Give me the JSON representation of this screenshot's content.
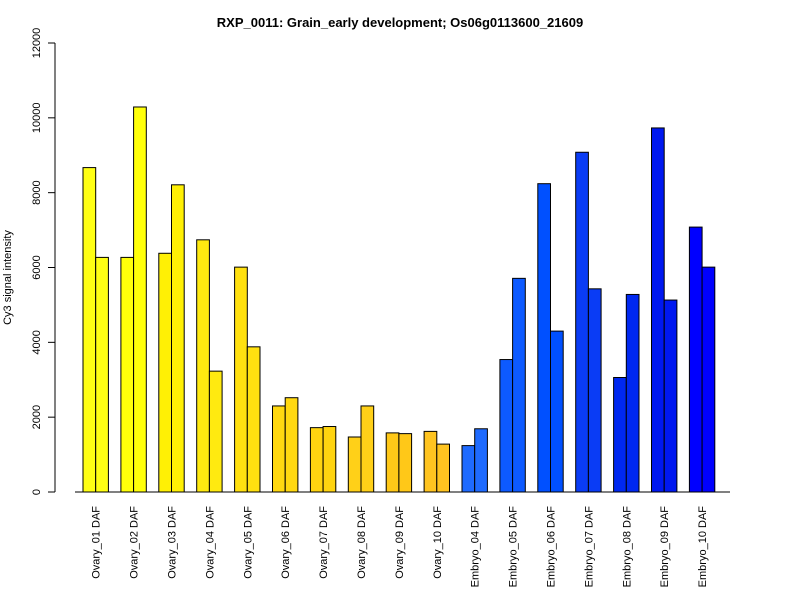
{
  "chart_data": {
    "type": "bar",
    "title": "RXP_0011: Grain_early development; Os06g0113600_21609",
    "xlabel": "",
    "ylabel": "Cy3 signal intensity",
    "ylim": [
      0,
      12000
    ],
    "yticks": [
      0,
      2000,
      4000,
      6000,
      8000,
      10000,
      12000
    ],
    "grid": false,
    "legend": "none",
    "bars_per_category": 2,
    "categories": [
      "Ovary_01 DAF",
      "Ovary_02 DAF",
      "Ovary_03 DAF",
      "Ovary_04 DAF",
      "Ovary_05 DAF",
      "Ovary_06 DAF",
      "Ovary_07 DAF",
      "Ovary_08 DAF",
      "Ovary_09 DAF",
      "Ovary_10 DAF",
      "Embryo_04 DAF",
      "Embryo_05 DAF",
      "Embryo_06 DAF",
      "Embryo_07 DAF",
      "Embryo_08 DAF",
      "Embryo_09 DAF",
      "Embryo_10 DAF"
    ],
    "series": [
      {
        "values": [
          8670,
          6270,
          6380,
          6740,
          6010,
          2300,
          1720,
          1470,
          1580,
          1620,
          1240,
          3540,
          8240,
          9080,
          3060,
          9730,
          7080
        ]
      },
      {
        "values": [
          6270,
          10290,
          8210,
          3230,
          3880,
          2520,
          1750,
          2300,
          1560,
          1280,
          1690,
          5710,
          4300,
          5430,
          5280,
          5130,
          6010
        ]
      }
    ],
    "colors": [
      "#ffff14",
      "#ffff0a",
      "#fff005",
      "#ffea10",
      "#ffe010",
      "#ffd810",
      "#ffd410",
      "#ffd018",
      "#ffc818",
      "#ffc420",
      "#1f6bff",
      "#0d5aff",
      "#0050ff",
      "#0a3cf5",
      "#0028f0",
      "#0018f0",
      "#0000ff"
    ]
  }
}
